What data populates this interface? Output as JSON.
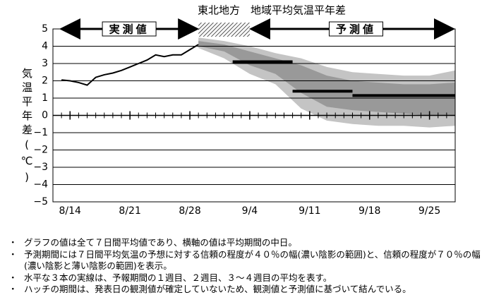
{
  "chart_data": {
    "type": "line",
    "title": "東北地方　地域平均気温平年差",
    "y_label": "気温平年差(℃)",
    "ylim": [
      -5,
      5
    ],
    "yticks": [
      5,
      4,
      3,
      2,
      1,
      0,
      {
        "value": -1,
        "label": "−1"
      },
      {
        "value": -2,
        "label": "−2"
      },
      {
        "value": -3,
        "label": "−3"
      },
      {
        "value": -4,
        "label": "−4"
      },
      {
        "value": -5,
        "label": "−5"
      }
    ],
    "xlim": [
      "8/12",
      "9/28"
    ],
    "xticks": [
      "8/14",
      "8/21",
      "8/28",
      "9/4",
      "9/11",
      "9/18",
      "9/25"
    ],
    "grid": true,
    "observed_label": "実測値",
    "forecast_label": "予測値",
    "hatch_x": [
      "8/29",
      "9/4"
    ],
    "observed": {
      "color": "#000000",
      "x": [
        "8/13",
        "8/14",
        "8/15",
        "8/16",
        "8/17",
        "8/18",
        "8/19",
        "8/20",
        "8/21",
        "8/22",
        "8/23",
        "8/24",
        "8/25",
        "8/26",
        "8/27",
        "8/28",
        "8/29"
      ],
      "values": [
        2.05,
        2.0,
        1.9,
        1.75,
        2.2,
        2.35,
        2.45,
        2.6,
        2.8,
        3.0,
        3.2,
        3.5,
        3.4,
        3.5,
        3.5,
        3.8,
        4.1
      ]
    },
    "bands": [
      {
        "color": "#c4c4c4",
        "x": [
          "8/29",
          "9/1",
          "9/4",
          "9/7",
          "9/10",
          "9/13",
          "9/16",
          "9/19",
          "9/22",
          "9/25",
          "9/28"
        ],
        "lower": [
          3.9,
          3.3,
          2.4,
          1.8,
          0.4,
          -0.3,
          -0.5,
          -0.6,
          -0.6,
          -0.7,
          -0.6
        ],
        "upper": [
          4.5,
          4.3,
          4.0,
          3.6,
          3.3,
          2.8,
          2.5,
          2.4,
          2.3,
          2.3,
          2.6
        ]
      },
      {
        "color": "#999999",
        "x": [
          "8/29",
          "9/1",
          "9/4",
          "9/7",
          "9/10",
          "9/13",
          "9/16",
          "9/19",
          "9/22",
          "9/25",
          "9/28"
        ],
        "lower": [
          4.0,
          3.7,
          2.9,
          2.4,
          1.3,
          0.5,
          0.3,
          0.2,
          0.1,
          0.0,
          0.0
        ],
        "upper": [
          4.3,
          4.1,
          3.7,
          3.3,
          2.9,
          2.3,
          2.0,
          1.9,
          1.8,
          1.8,
          1.9
        ]
      }
    ],
    "weekly": {
      "color": "#000000",
      "x_start": [
        "9/2",
        "9/9",
        "9/16"
      ],
      "x_end": [
        "9/9",
        "9/16",
        "9/28"
      ],
      "values": [
        3.1,
        1.4,
        1.15
      ]
    }
  },
  "notes": [
    "グラフの値は全て７日間平均値であり、横軸の値は平均期間の中日。",
    "予測期間には７日間平均気温の予想に対する信頼の程度が４０％の幅(濃い陰影の範囲)と、信頼の程度が７０％の幅(濃い陰影と薄い陰影の範囲)を表示。",
    "水平な３本の実線は、予報期間の１週目、２週目、３～４週目の平均を表す。",
    "ハッチの期間は、発表日の観測値が確定していないため、観測値と予測値に基づいて結んでいる。"
  ]
}
